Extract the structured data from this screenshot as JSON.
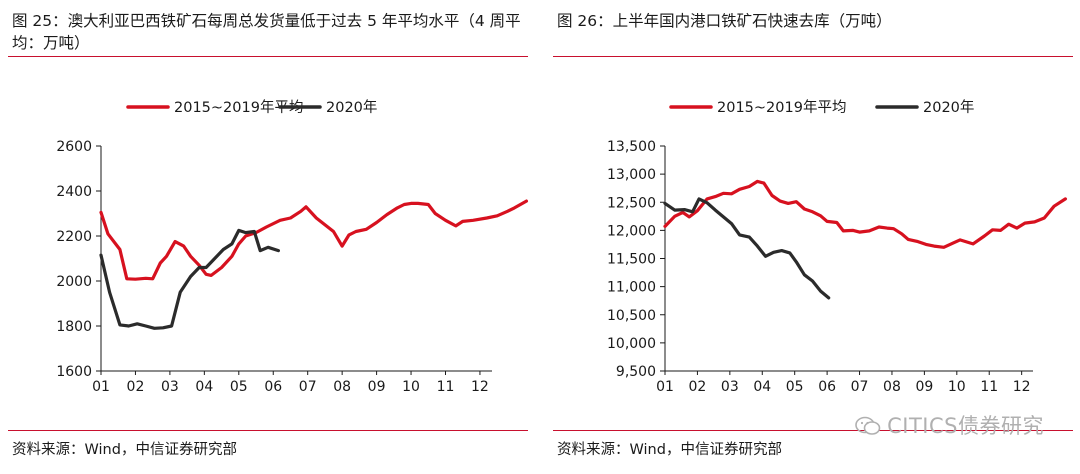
{
  "left": {
    "title": "图 25：澳大利亚巴西铁矿石每周总发货量低于过去 5 年平均水平（4 周平均：万吨）",
    "source": "资料来源：Wind，中信证券研究部"
  },
  "right": {
    "title": "图 26：上半年国内港口铁矿石快速去库（万吨）",
    "source": "资料来源：Wind，中信证券研究部"
  },
  "watermark": "CITICS债券研究",
  "colors": {
    "avg": "#d7111f",
    "y2020": "#2b2b2b",
    "rule": "#c8102e"
  },
  "chart_data": [
    {
      "type": "line",
      "title": "",
      "xlabel": "",
      "ylabel": "",
      "x_ticks": [
        "01",
        "02",
        "03",
        "04",
        "05",
        "06",
        "07",
        "08",
        "09",
        "10",
        "11",
        "12"
      ],
      "ylim": [
        1600,
        2600
      ],
      "y_ticks": [
        "1600",
        "1800",
        "2000",
        "2200",
        "2400",
        "2600"
      ],
      "legend_position": "top",
      "grid": false,
      "series": [
        {
          "name": "2015~2019年平均",
          "color": "#d7111f",
          "points": [
            [
              0,
              2305
            ],
            [
              0.2,
              2210
            ],
            [
              0.55,
              2140
            ],
            [
              0.75,
              2010
            ],
            [
              1.0,
              2008
            ],
            [
              1.3,
              2012
            ],
            [
              1.5,
              2010
            ],
            [
              1.72,
              2080
            ],
            [
              1.9,
              2110
            ],
            [
              2.15,
              2175
            ],
            [
              2.4,
              2155
            ],
            [
              2.6,
              2110
            ],
            [
              2.85,
              2070
            ],
            [
              3.05,
              2030
            ],
            [
              3.2,
              2025
            ],
            [
              3.5,
              2060
            ],
            [
              3.8,
              2110
            ],
            [
              4.0,
              2165
            ],
            [
              4.2,
              2200
            ],
            [
              4.5,
              2215
            ],
            [
              4.8,
              2240
            ],
            [
              5.2,
              2270
            ],
            [
              5.5,
              2280
            ],
            [
              5.8,
              2310
            ],
            [
              5.95,
              2330
            ],
            [
              6.25,
              2280
            ],
            [
              6.5,
              2250
            ],
            [
              6.75,
              2220
            ],
            [
              7.0,
              2155
            ],
            [
              7.2,
              2205
            ],
            [
              7.4,
              2220
            ],
            [
              7.7,
              2230
            ],
            [
              8.0,
              2260
            ],
            [
              8.3,
              2295
            ],
            [
              8.6,
              2325
            ],
            [
              8.8,
              2340
            ],
            [
              9.0,
              2345
            ],
            [
              9.2,
              2345
            ],
            [
              9.5,
              2340
            ],
            [
              9.7,
              2300
            ],
            [
              10.0,
              2270
            ],
            [
              10.3,
              2245
            ],
            [
              10.5,
              2265
            ],
            [
              10.8,
              2270
            ],
            [
              11.2,
              2280
            ],
            [
              11.5,
              2290
            ],
            [
              11.8,
              2310
            ],
            [
              12.0,
              2325
            ],
            [
              12.35,
              2355
            ]
          ]
        },
        {
          "name": "2020年",
          "color": "#2b2b2b",
          "points": [
            [
              0,
              2115
            ],
            [
              0.25,
              1950
            ],
            [
              0.55,
              1805
            ],
            [
              0.8,
              1800
            ],
            [
              1.05,
              1810
            ],
            [
              1.3,
              1800
            ],
            [
              1.55,
              1790
            ],
            [
              1.8,
              1792
            ],
            [
              2.05,
              1800
            ],
            [
              2.3,
              1950
            ],
            [
              2.6,
              2020
            ],
            [
              2.85,
              2060
            ],
            [
              3.05,
              2060
            ],
            [
              3.3,
              2100
            ],
            [
              3.55,
              2140
            ],
            [
              3.8,
              2165
            ],
            [
              4.0,
              2225
            ],
            [
              4.2,
              2215
            ],
            [
              4.45,
              2220
            ],
            [
              4.62,
              2135
            ],
            [
              4.85,
              2150
            ],
            [
              5.15,
              2135
            ]
          ]
        }
      ]
    },
    {
      "type": "line",
      "title": "",
      "xlabel": "",
      "ylabel": "",
      "x_ticks": [
        "01",
        "02",
        "03",
        "04",
        "05",
        "06",
        "07",
        "08",
        "09",
        "10",
        "11",
        "12"
      ],
      "ylim": [
        9500,
        13500
      ],
      "y_ticks": [
        "9,500",
        "10,000",
        "10,500",
        "11,000",
        "11,500",
        "12,000",
        "12,500",
        "13,000",
        "13,500"
      ],
      "legend_position": "top",
      "grid": false,
      "series": [
        {
          "name": "2015~2019年平均",
          "color": "#d7111f",
          "points": [
            [
              0,
              12070
            ],
            [
              0.3,
              12250
            ],
            [
              0.55,
              12320
            ],
            [
              0.75,
              12240
            ],
            [
              1.0,
              12350
            ],
            [
              1.3,
              12560
            ],
            [
              1.55,
              12600
            ],
            [
              1.8,
              12660
            ],
            [
              2.05,
              12650
            ],
            [
              2.3,
              12730
            ],
            [
              2.6,
              12780
            ],
            [
              2.85,
              12870
            ],
            [
              3.05,
              12840
            ],
            [
              3.3,
              12620
            ],
            [
              3.55,
              12520
            ],
            [
              3.8,
              12480
            ],
            [
              4.05,
              12510
            ],
            [
              4.3,
              12380
            ],
            [
              4.55,
              12330
            ],
            [
              4.8,
              12260
            ],
            [
              5.0,
              12160
            ],
            [
              5.3,
              12140
            ],
            [
              5.5,
              11990
            ],
            [
              5.8,
              12000
            ],
            [
              6.0,
              11970
            ],
            [
              6.3,
              11990
            ],
            [
              6.6,
              12060
            ],
            [
              6.85,
              12040
            ],
            [
              7.05,
              12030
            ],
            [
              7.3,
              11940
            ],
            [
              7.5,
              11840
            ],
            [
              7.8,
              11800
            ],
            [
              8.05,
              11750
            ],
            [
              8.3,
              11720
            ],
            [
              8.6,
              11700
            ],
            [
              8.9,
              11780
            ],
            [
              9.1,
              11830
            ],
            [
              9.5,
              11760
            ],
            [
              9.85,
              11900
            ],
            [
              10.1,
              12010
            ],
            [
              10.35,
              12000
            ],
            [
              10.6,
              12110
            ],
            [
              10.85,
              12040
            ],
            [
              11.1,
              12130
            ],
            [
              11.4,
              12150
            ],
            [
              11.7,
              12220
            ],
            [
              12.0,
              12430
            ],
            [
              12.35,
              12560
            ]
          ]
        },
        {
          "name": "2020年",
          "color": "#2b2b2b",
          "points": [
            [
              0,
              12480
            ],
            [
              0.3,
              12360
            ],
            [
              0.6,
              12370
            ],
            [
              0.85,
              12330
            ],
            [
              1.05,
              12560
            ],
            [
              1.3,
              12490
            ],
            [
              1.55,
              12360
            ],
            [
              1.8,
              12240
            ],
            [
              2.05,
              12120
            ],
            [
              2.3,
              11920
            ],
            [
              2.6,
              11880
            ],
            [
              2.85,
              11720
            ],
            [
              3.1,
              11540
            ],
            [
              3.35,
              11610
            ],
            [
              3.6,
              11640
            ],
            [
              3.85,
              11600
            ],
            [
              4.05,
              11440
            ],
            [
              4.3,
              11210
            ],
            [
              4.55,
              11100
            ],
            [
              4.8,
              10920
            ],
            [
              5.05,
              10800
            ]
          ]
        }
      ]
    }
  ]
}
